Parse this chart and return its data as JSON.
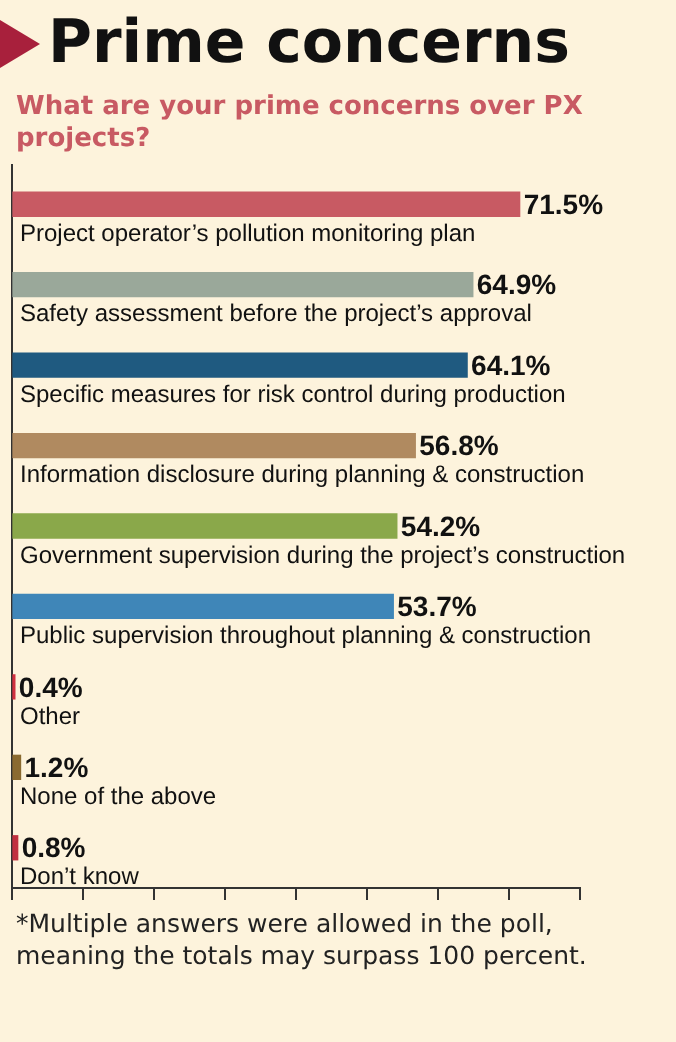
{
  "chart_data": {
    "type": "bar",
    "orientation": "horizontal",
    "title": "Prime concerns",
    "subtitle": "What are your prime concerns over PX projects?",
    "categories": [
      "Project operator’s pollution monitoring plan",
      "Safety assessment before the project’s approval",
      "Specific measures for risk control during production",
      "Information disclosure during planning & construction",
      "Government supervision during the project’s construction",
      "Public supervision throughout planning & construction",
      "Other",
      "None of the above",
      "Don’t know"
    ],
    "values": [
      71.5,
      64.9,
      64.1,
      56.8,
      54.2,
      53.7,
      0.4,
      1.2,
      0.8
    ],
    "value_labels": [
      "71.5%",
      "64.9%",
      "64.1%",
      "56.8%",
      "54.2%",
      "53.7%",
      "0.4%",
      "1.2%",
      "0.8%"
    ],
    "colors": [
      "#c85a63",
      "#9aa89a",
      "#1f5a80",
      "#b08a60",
      "#8aa84a",
      "#3f86b8",
      "#d03040",
      "#8a6a30",
      "#c03040"
    ],
    "xlim": [
      0,
      80
    ],
    "xticks": [
      {
        "value": 0,
        "label": null
      },
      {
        "value": 10,
        "label": null
      },
      {
        "value": 20,
        "label": null
      },
      {
        "value": 30,
        "label": null
      },
      {
        "value": 40,
        "label": null
      },
      {
        "value": 50,
        "label": null
      },
      {
        "value": 60,
        "label": null
      },
      {
        "value": 70,
        "label": null
      },
      {
        "value": 80,
        "label": null
      }
    ],
    "tick_labels": false,
    "grid": false,
    "legend": false,
    "annotations": [
      "*Multiple answers were allowed in the poll, meaning the totals may surpass 100 percent."
    ]
  }
}
